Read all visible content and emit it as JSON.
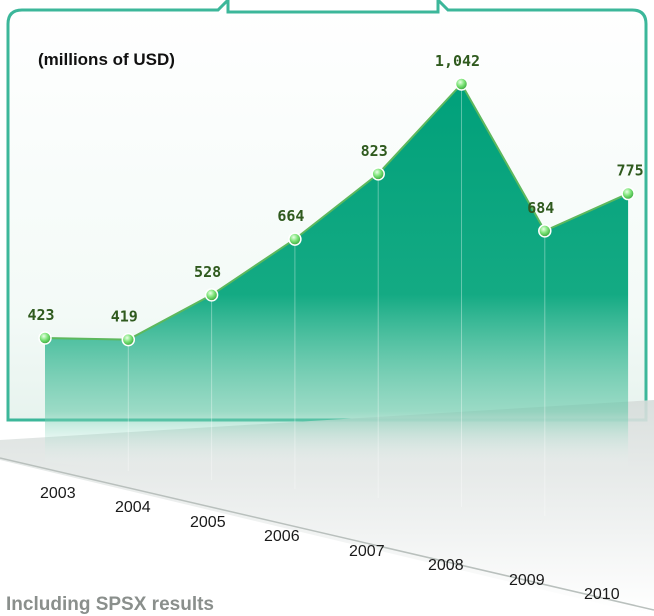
{
  "chart_data": {
    "type": "area",
    "unit_label": "(millions of USD)",
    "categories": [
      "2003",
      "2004",
      "2005",
      "2006",
      "2007",
      "2008",
      "2009",
      "2010"
    ],
    "values": [
      423,
      419,
      528,
      664,
      823,
      1042,
      684,
      775
    ],
    "value_labels": [
      "423",
      "419",
      "528",
      "664",
      "823",
      "1,042",
      "684",
      "775"
    ],
    "grid": false,
    "legend": "none",
    "colors": {
      "fill": "#00a07a",
      "line": "#5db85d",
      "marker": "#4fd34f",
      "frame": "#3cb79a",
      "value_text": "#2f5a1e"
    }
  },
  "footnote": "Including SPSX results"
}
